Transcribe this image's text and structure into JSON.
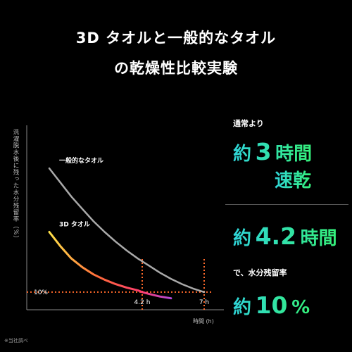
{
  "title_line1": "3D タオルと一般的なタオル",
  "title_line2": "の乾燥性比較実験",
  "panel": {
    "p1_label": "通常より",
    "p1_prefix": "約",
    "p1_value": "3",
    "p1_unit": "時間",
    "p1_suffix": "速乾",
    "p2_prefix": "約",
    "p2_value": "4.2",
    "p2_unit": "時間",
    "p3_label": "で、水分残留率",
    "p3_prefix": "約",
    "p3_value": "10",
    "p3_unit": "%"
  },
  "note": "※当社調べ",
  "colors": {
    "accent_cyan": "#2fd4d8",
    "accent_green": "#34f07a",
    "ref_line": "#ff6a2a",
    "normal_curve": "#a9a9a9"
  },
  "chart_data": {
    "type": "line",
    "xlabel": "時間 (h)",
    "ylabel": "洗濯脱水後に残った水分残留率（%）",
    "xlim": [
      0,
      8
    ],
    "ylim": [
      0,
      100
    ],
    "x_ticks": [
      {
        "value": 4.2,
        "label": "4.2 h"
      },
      {
        "value": 7,
        "label": "7 h"
      }
    ],
    "y_ticks": [
      {
        "value": 10,
        "label": "10%"
      }
    ],
    "reference_lines": {
      "y": 10,
      "x": [
        4.2,
        7
      ]
    },
    "series": [
      {
        "name": "一般的なタオル",
        "x": [
          0,
          0.5,
          1,
          1.5,
          2,
          2.5,
          3,
          3.5,
          4,
          4.5,
          5,
          5.5,
          6,
          6.5,
          7
        ],
        "y": [
          80,
          72,
          64,
          57,
          50,
          44,
          38.5,
          33.5,
          29,
          25,
          21,
          17.5,
          14.5,
          12,
          10
        ]
      },
      {
        "name": "3D タオル",
        "x": [
          0,
          0.5,
          1,
          1.5,
          2,
          2.5,
          3,
          3.5,
          4,
          4.2,
          4.5,
          5,
          5.5
        ],
        "y": [
          44,
          36,
          29,
          24,
          20,
          17,
          14.5,
          12.5,
          11,
          10,
          9,
          7.5,
          6.5
        ]
      }
    ]
  }
}
